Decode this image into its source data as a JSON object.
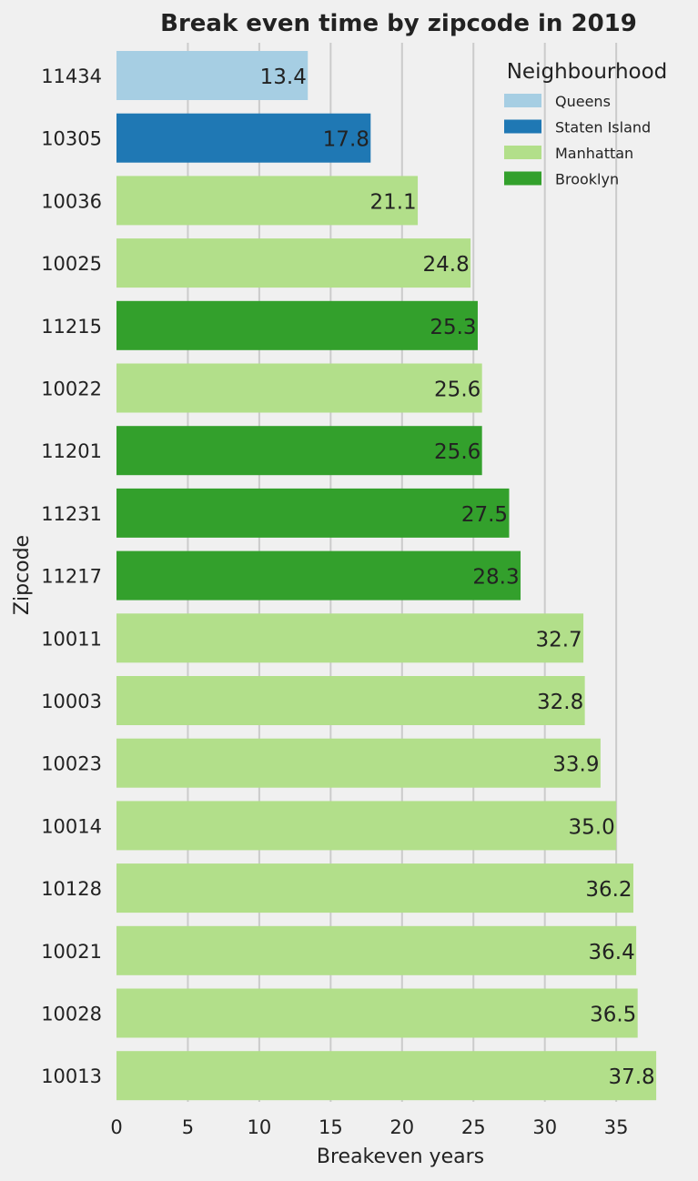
{
  "chart_data": {
    "type": "bar",
    "orientation": "horizontal",
    "title": "Break even time by zipcode in 2019",
    "xlabel": "Breakeven years",
    "ylabel": "Zipcode",
    "xlim": [
      0,
      38
    ],
    "xticks": [
      0,
      5,
      10,
      15,
      20,
      25,
      30,
      35
    ],
    "grid": "vertical",
    "legend": {
      "title": "Neighbourhood",
      "position": "top-right",
      "entries": [
        {
          "name": "Queens",
          "color": "#a6cee3"
        },
        {
          "name": "Staten Island",
          "color": "#1f78b4"
        },
        {
          "name": "Manhattan",
          "color": "#b2df8a"
        },
        {
          "name": "Brooklyn",
          "color": "#33a02c"
        }
      ]
    },
    "categories": [
      "11434",
      "10305",
      "10036",
      "10025",
      "11215",
      "10022",
      "11201",
      "11231",
      "11217",
      "10011",
      "10003",
      "10023",
      "10014",
      "10128",
      "10021",
      "10028",
      "10013"
    ],
    "values": [
      13.4,
      17.8,
      21.1,
      24.8,
      25.3,
      25.6,
      25.6,
      27.5,
      28.3,
      32.7,
      32.8,
      33.9,
      35.0,
      36.2,
      36.4,
      36.5,
      37.8
    ],
    "value_labels": [
      "13.4",
      "17.8",
      "21.1",
      "24.8",
      "25.3",
      "25.6",
      "25.6",
      "27.5",
      "28.3",
      "32.7",
      "32.8",
      "33.9",
      "35.0",
      "36.2",
      "36.4",
      "36.5",
      "37.8"
    ],
    "neighbourhood": [
      "Queens",
      "Staten Island",
      "Manhattan",
      "Manhattan",
      "Brooklyn",
      "Manhattan",
      "Brooklyn",
      "Brooklyn",
      "Brooklyn",
      "Manhattan",
      "Manhattan",
      "Manhattan",
      "Manhattan",
      "Manhattan",
      "Manhattan",
      "Manhattan",
      "Manhattan"
    ]
  }
}
